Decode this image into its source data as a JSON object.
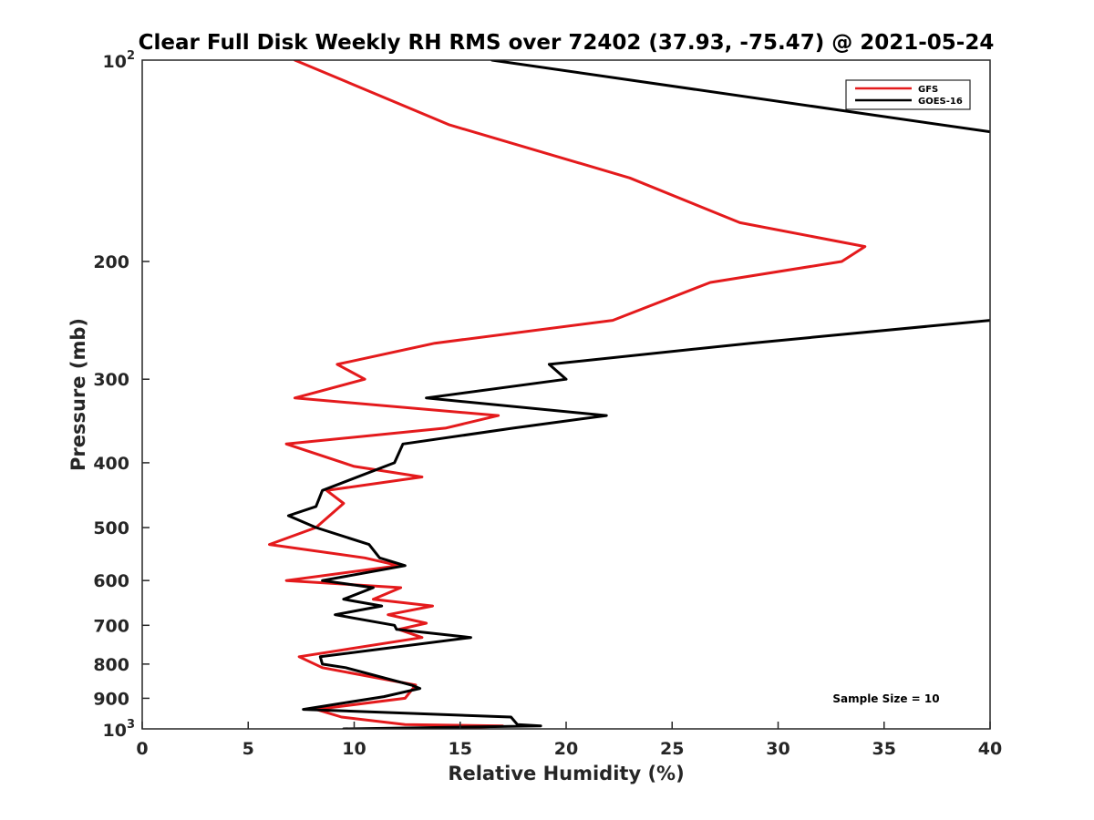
{
  "chart_data": {
    "type": "line",
    "title": "Clear Full Disk Weekly RH RMS over 72402 (37.93, -75.47) @ 2021-05-24",
    "xlabel": "Relative Humidity (%)",
    "ylabel": "Pressure (mb)",
    "xlim": [
      0,
      40
    ],
    "ylim": [
      100,
      1000
    ],
    "yscale": "log",
    "yreversed": true,
    "x_ticks": [
      0,
      5,
      10,
      15,
      20,
      25,
      30,
      35,
      40
    ],
    "x_tick_labels": [
      "0",
      "5",
      "10",
      "15",
      "20",
      "25",
      "30",
      "35",
      "40"
    ],
    "y_ticks": [
      200,
      300,
      400,
      500,
      600,
      700,
      800,
      900
    ],
    "y_tick_labels": [
      "200",
      "300",
      "400",
      "500",
      "600",
      "700",
      "800",
      "900"
    ],
    "y_top_label": {
      "base": "10",
      "exp": "2"
    },
    "y_bottom_label": {
      "base": "10",
      "exp": "3"
    },
    "grid": false,
    "legend_position": "top-right",
    "annotation": "Sample Size = 10",
    "series": [
      {
        "name": "GFS",
        "color": "#e41a1c",
        "points": [
          [
            7.2,
            100
          ],
          [
            14.5,
            125
          ],
          [
            23.0,
            150
          ],
          [
            28.2,
            175
          ],
          [
            34.1,
            190
          ],
          [
            33.0,
            200
          ],
          [
            26.8,
            215
          ],
          [
            22.2,
            245
          ],
          [
            13.8,
            265
          ],
          [
            9.2,
            285
          ],
          [
            10.5,
            300
          ],
          [
            7.2,
            320
          ],
          [
            16.8,
            340
          ],
          [
            14.3,
            355
          ],
          [
            6.8,
            375
          ],
          [
            10.0,
            405
          ],
          [
            13.2,
            420
          ],
          [
            8.7,
            440
          ],
          [
            9.5,
            460
          ],
          [
            8.2,
            500
          ],
          [
            6.0,
            530
          ],
          [
            10.5,
            555
          ],
          [
            12.1,
            570
          ],
          [
            6.8,
            600
          ],
          [
            12.2,
            615
          ],
          [
            10.9,
            640
          ],
          [
            13.7,
            655
          ],
          [
            11.6,
            675
          ],
          [
            13.4,
            695
          ],
          [
            12.1,
            710
          ],
          [
            13.2,
            730
          ],
          [
            7.4,
            780
          ],
          [
            8.5,
            810
          ],
          [
            12.9,
            860
          ],
          [
            12.4,
            900
          ],
          [
            8.2,
            935
          ],
          [
            9.4,
            960
          ],
          [
            12.4,
            985
          ],
          [
            17.0,
            990
          ],
          [
            14.3,
            1000
          ]
        ]
      },
      {
        "name": "GOES-16",
        "color": "#000000",
        "points": [
          [
            16.5,
            100
          ],
          [
            40.0,
            128
          ],
          null,
          [
            40.0,
            245
          ],
          [
            28.7,
            265
          ],
          [
            19.2,
            285
          ],
          [
            20.0,
            300
          ],
          [
            13.4,
            320
          ],
          [
            21.9,
            340
          ],
          [
            17.5,
            355
          ],
          [
            12.3,
            375
          ],
          [
            11.9,
            400
          ],
          [
            8.5,
            440
          ],
          [
            8.2,
            465
          ],
          [
            6.9,
            480
          ],
          [
            8.2,
            500
          ],
          [
            10.7,
            530
          ],
          [
            11.2,
            555
          ],
          [
            12.4,
            570
          ],
          [
            8.5,
            600
          ],
          [
            10.9,
            615
          ],
          [
            9.5,
            640
          ],
          [
            11.3,
            655
          ],
          [
            9.1,
            675
          ],
          [
            11.9,
            700
          ],
          [
            12.0,
            710
          ],
          [
            15.5,
            730
          ],
          [
            8.4,
            780
          ],
          [
            8.5,
            800
          ],
          [
            9.6,
            810
          ],
          [
            12.7,
            860
          ],
          [
            13.1,
            870
          ],
          [
            11.4,
            895
          ],
          [
            7.6,
            935
          ],
          [
            17.4,
            960
          ],
          [
            17.7,
            985
          ],
          [
            18.8,
            990
          ],
          [
            9.5,
            1000
          ]
        ]
      }
    ]
  }
}
